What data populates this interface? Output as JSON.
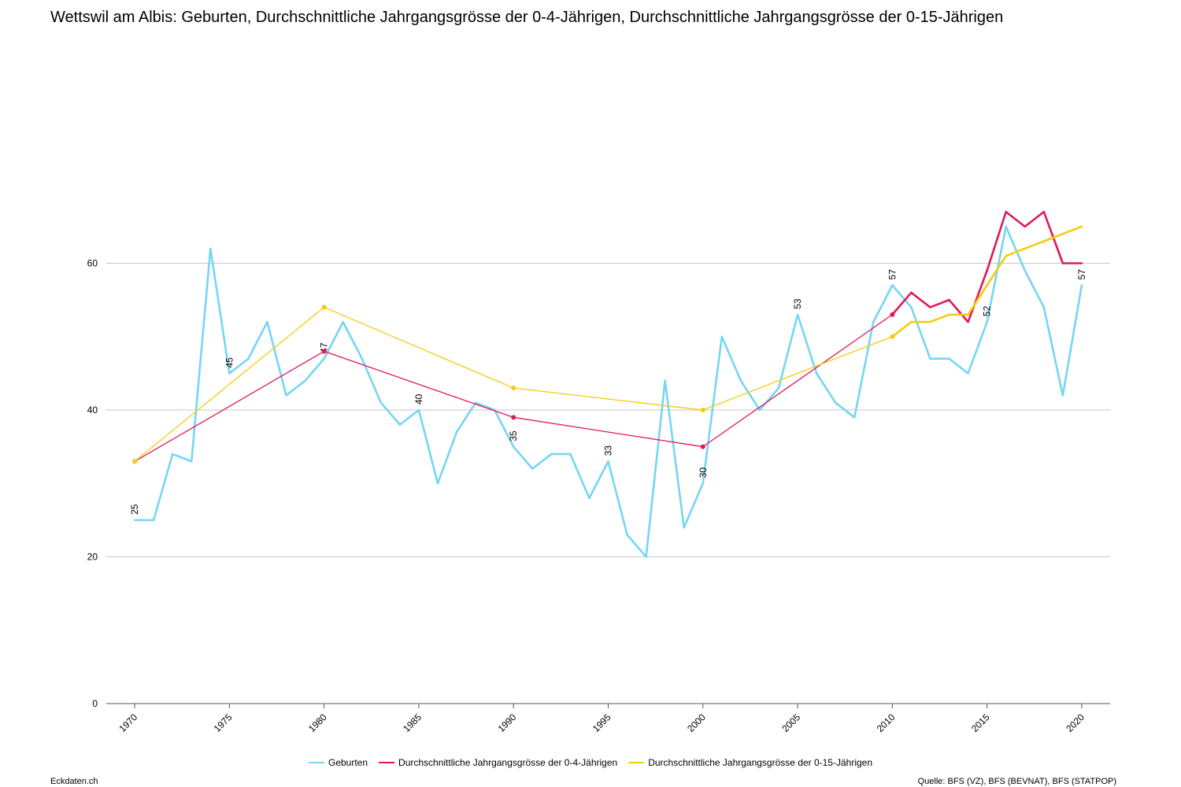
{
  "chart_data": {
    "type": "line",
    "title": "Wettswil am Albis: Geburten, Durchschnittliche Jahrgangsgrösse der 0-4-Jährigen, Durchschnittliche Jahrgangsgrösse der 0-15-Jährigen",
    "source": "Quelle: BFS (VZ), BFS (BEVNAT), BFS (STATPOP)",
    "brand": "Eckdaten.ch",
    "xlim": [
      1968.5,
      2021.5
    ],
    "xticks": [
      1970,
      1975,
      1980,
      1985,
      1990,
      1995,
      2000,
      2005,
      2010,
      2015,
      2020
    ],
    "ylim": [
      0,
      80
    ],
    "yticks": [
      0,
      20,
      40,
      60
    ],
    "grid": true,
    "legend": "bottom",
    "series": [
      {
        "name": "Geburten",
        "color": "#75d6f5",
        "x": [
          1970,
          1971,
          1972,
          1973,
          1974,
          1975,
          1976,
          1977,
          1978,
          1979,
          1980,
          1981,
          1982,
          1983,
          1984,
          1985,
          1986,
          1987,
          1988,
          1989,
          1990,
          1991,
          1992,
          1993,
          1994,
          1995,
          1996,
          1997,
          1998,
          1999,
          2000,
          2001,
          2002,
          2003,
          2004,
          2005,
          2006,
          2007,
          2008,
          2009,
          2010,
          2011,
          2012,
          2013,
          2014,
          2015,
          2016,
          2017,
          2018,
          2019,
          2020
        ],
        "values": [
          25,
          25,
          34,
          33,
          62,
          45,
          47,
          52,
          42,
          44,
          47,
          52,
          47,
          41,
          38,
          40,
          30,
          37,
          41,
          40,
          35,
          32,
          34,
          34,
          28,
          33,
          23,
          20,
          44,
          24,
          30,
          50,
          44,
          40,
          43,
          53,
          45,
          41,
          39,
          52,
          57,
          54,
          47,
          47,
          45,
          52,
          65,
          59,
          54,
          42,
          57
        ]
      },
      {
        "name": "Durchschnittliche Jahrgangsgrösse der 0-4-Jährigen",
        "color": "#e0185a",
        "x": [
          1970,
          1980,
          1990,
          2000,
          2010,
          2011,
          2012,
          2013,
          2014,
          2015,
          2016,
          2017,
          2018,
          2019,
          2020
        ],
        "values": [
          33,
          48,
          39,
          35,
          53,
          56,
          54,
          55,
          52,
          59,
          67,
          65,
          67,
          60,
          60
        ]
      },
      {
        "name": "Durchschnittliche Jahrgangsgrösse der 0-15-Jährigen",
        "color": "#f5cc0c",
        "x": [
          1970,
          1980,
          1990,
          2000,
          2010,
          2011,
          2012,
          2013,
          2014,
          2015,
          2016,
          2017,
          2018,
          2019,
          2020
        ],
        "values": [
          33,
          54,
          43,
          40,
          50,
          52,
          52,
          53,
          53,
          57,
          61,
          62,
          63,
          64,
          65
        ]
      }
    ]
  }
}
